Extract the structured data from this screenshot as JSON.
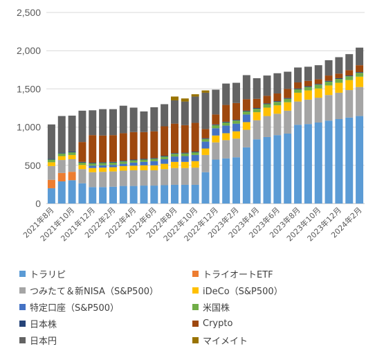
{
  "chart_data": {
    "type": "bar",
    "stacked": true,
    "ylim": [
      0,
      2500
    ],
    "yticks": [
      "0",
      "500",
      "1,000",
      "1,500",
      "2,000",
      "2,500"
    ],
    "ytick_values": [
      0,
      500,
      1000,
      1500,
      2000,
      2500
    ],
    "grid": true,
    "legend_position": "bottom",
    "categories": [
      "2021年8月",
      "2021年9月",
      "2021年10月",
      "2021年11月",
      "2021年12月",
      "2022年1月",
      "2022年2月",
      "2022年3月",
      "2022年4月",
      "2022年5月",
      "2022年6月",
      "2022年7月",
      "2022年8月",
      "2022年9月",
      "2022年10月",
      "2022年11月",
      "2022年12月",
      "2023年1月",
      "2023年2月",
      "2023年3月",
      "2023年4月",
      "2023年5月",
      "2023年6月",
      "2023年7月",
      "2023年8月",
      "2023年9月",
      "2023年10月",
      "2023年11月",
      "2023年12月",
      "2024年1月",
      "2024年2月"
    ],
    "visible_labels": [
      "2021年8月",
      "2021年10月",
      "2021年12月",
      "2022年2月",
      "2022年4月",
      "2022年6月",
      "2022年8月",
      "2022年10月",
      "2022年12月",
      "2023年2月",
      "2023年4月",
      "2023年6月",
      "2023年8月",
      "2023年10月",
      "2023年12月",
      "2024年2月"
    ],
    "series": [
      {
        "name": "トラリピ",
        "color": "#5B9BD5",
        "values": [
          200,
          290,
          305,
          265,
          215,
          215,
          220,
          230,
          230,
          235,
          235,
          240,
          245,
          245,
          245,
          410,
          575,
          590,
          605,
          735,
          840,
          870,
          895,
          915,
          1030,
          1040,
          1060,
          1085,
          1105,
          1125,
          1145
        ]
      },
      {
        "name": "トライオートETF",
        "color": "#ED7D31",
        "values": [
          110,
          110,
          110,
          0,
          0,
          0,
          0,
          0,
          0,
          0,
          0,
          0,
          0,
          0,
          0,
          0,
          0,
          0,
          0,
          0,
          0,
          0,
          0,
          0,
          0,
          0,
          0,
          0,
          0,
          0,
          0
        ]
      },
      {
        "name": "つみたて＆新NISA（S&P500）",
        "color": "#A5A5A5",
        "values": [
          180,
          170,
          165,
          185,
          195,
          200,
          200,
          200,
          205,
          200,
          200,
          210,
          220,
          220,
          225,
          225,
          225,
          240,
          245,
          230,
          250,
          275,
          280,
          300,
          305,
          320,
          325,
          335,
          345,
          360,
          380
        ]
      },
      {
        "name": "iDeCo（S&P500）",
        "color": "#FFC000",
        "values": [
          50,
          50,
          55,
          55,
          55,
          55,
          55,
          60,
          60,
          65,
          65,
          70,
          80,
          80,
          85,
          85,
          90,
          90,
          95,
          100,
          105,
          110,
          110,
          110,
          115,
          120,
          120,
          125,
          130,
          130,
          135
        ]
      },
      {
        "name": "特定口座（S&P500）",
        "color": "#4472C4",
        "values": [
          0,
          0,
          0,
          0,
          30,
          30,
          30,
          30,
          40,
          45,
          55,
          60,
          70,
          75,
          80,
          90,
          95,
          100,
          100,
          100,
          0,
          0,
          0,
          0,
          0,
          0,
          0,
          0,
          0,
          0,
          0
        ]
      },
      {
        "name": "米国株",
        "color": "#70AD47",
        "values": [
          35,
          35,
          35,
          30,
          30,
          30,
          30,
          30,
          30,
          30,
          30,
          35,
          35,
          35,
          35,
          35,
          40,
          40,
          40,
          40,
          45,
          45,
          45,
          45,
          45,
          45,
          50,
          50,
          50,
          50,
          50
        ]
      },
      {
        "name": "日本株",
        "color": "#264478",
        "values": [
          10,
          10,
          10,
          10,
          10,
          10,
          10,
          10,
          10,
          10,
          10,
          10,
          10,
          10,
          10,
          10,
          10,
          10,
          10,
          10,
          10,
          10,
          10,
          10,
          10,
          10,
          10,
          10,
          10,
          10,
          10
        ]
      },
      {
        "name": "Crypto",
        "color": "#9E480E",
        "values": [
          0,
          0,
          0,
          260,
          360,
          350,
          350,
          360,
          360,
          350,
          350,
          385,
          385,
          360,
          375,
          120,
          130,
          220,
          220,
          150,
          120,
          100,
          100,
          120,
          80,
          70,
          60,
          70,
          60,
          70,
          90
        ]
      },
      {
        "name": "日本円",
        "color": "#636363",
        "values": [
          450,
          480,
          470,
          410,
          325,
          345,
          340,
          360,
          320,
          270,
          315,
          290,
          305,
          310,
          345,
          475,
          325,
          280,
          265,
          315,
          270,
          265,
          265,
          225,
          195,
          185,
          185,
          200,
          215,
          210,
          230
        ]
      },
      {
        "name": "マイメイト",
        "color": "#997300",
        "values": [
          0,
          0,
          0,
          0,
          0,
          0,
          0,
          0,
          0,
          0,
          0,
          0,
          50,
          40,
          30,
          30,
          0,
          0,
          0,
          0,
          0,
          0,
          0,
          0,
          0,
          0,
          0,
          0,
          0,
          0,
          0
        ]
      }
    ]
  }
}
